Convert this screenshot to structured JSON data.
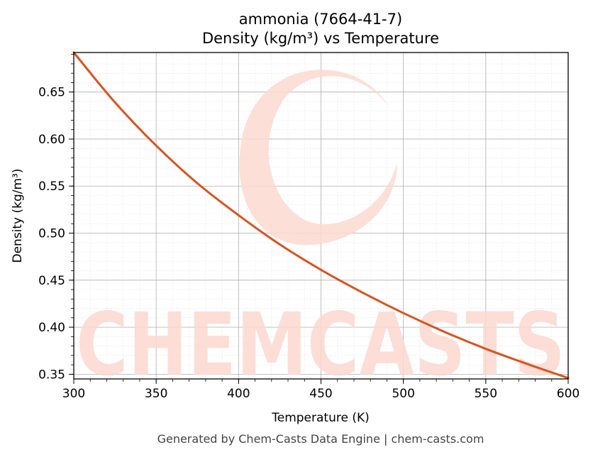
{
  "chart_data": {
    "type": "line",
    "title": "ammonia (7664-41-7)",
    "subtitle": "Density (kg/m³) vs Temperature",
    "xlabel": "Temperature (K)",
    "ylabel": "Density (kg/m³)",
    "xlim": [
      300,
      600
    ],
    "ylim": [
      0.345,
      0.692
    ],
    "x_ticks": [
      300,
      350,
      400,
      450,
      500,
      550,
      600
    ],
    "y_ticks": [
      0.35,
      0.4,
      0.45,
      0.5,
      0.55,
      0.6,
      0.65
    ],
    "x_tick_labels": [
      "300",
      "350",
      "400",
      "450",
      "500",
      "550",
      "600"
    ],
    "y_tick_labels": [
      "0.35",
      "0.40",
      "0.45",
      "0.50",
      "0.55",
      "0.60",
      "0.65"
    ],
    "grid": true,
    "minor_grid": true,
    "series": [
      {
        "color": "#d9531e",
        "x": [
          300,
          325,
          350,
          375,
          400,
          425,
          450,
          475,
          500,
          525,
          550,
          575,
          600
        ],
        "y": [
          0.692,
          0.639,
          0.593,
          0.553,
          0.519,
          0.488,
          0.461,
          0.437,
          0.415,
          0.395,
          0.377,
          0.361,
          0.346
        ]
      }
    ]
  },
  "watermark": {
    "text": "CHEMCASTS",
    "color": "#fcd9d0"
  },
  "footer": "Generated by Chem-Casts Data Engine | chem-casts.com"
}
